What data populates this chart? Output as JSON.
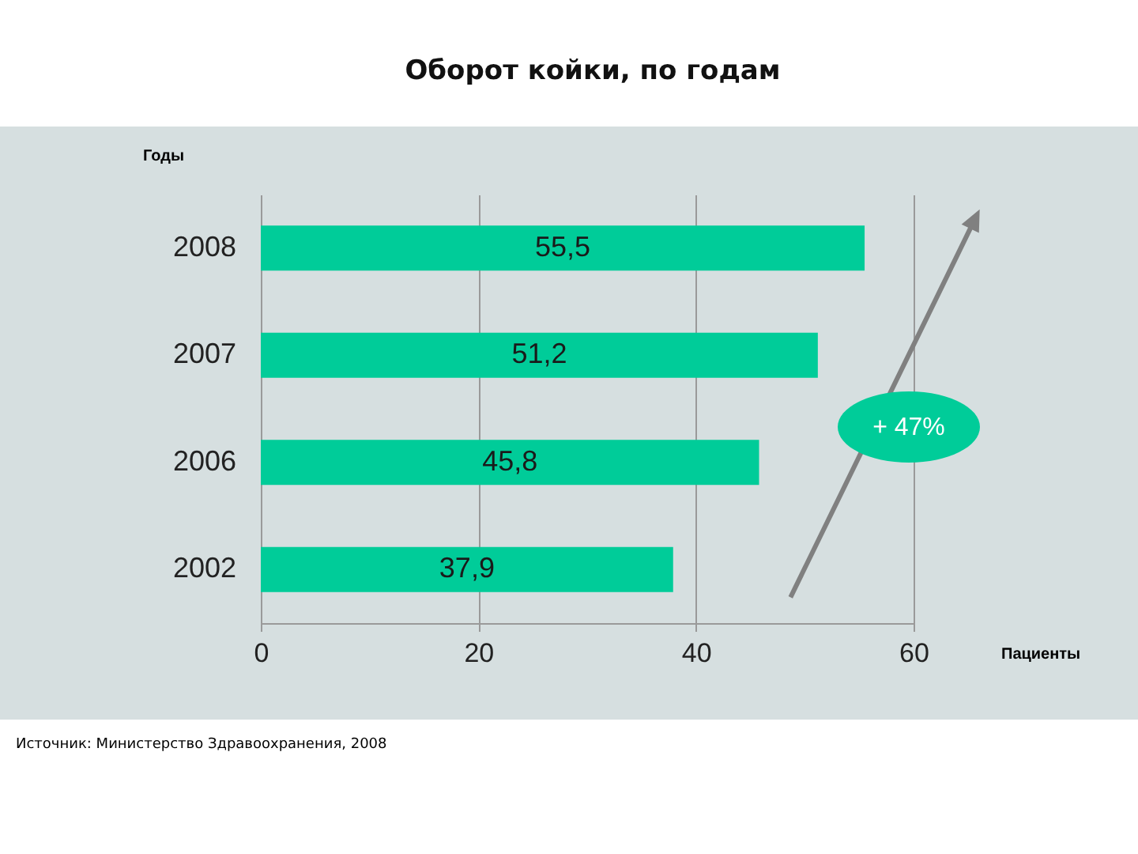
{
  "chart_data": {
    "type": "bar",
    "orientation": "horizontal",
    "title": "Оборот койки, по годам",
    "ylabel": "Годы",
    "xlabel": "Пациенты",
    "categories": [
      "2008",
      "2007",
      "2006",
      "2002"
    ],
    "values": [
      55.5,
      51.2,
      45.8,
      37.9
    ],
    "value_labels": [
      "55,5",
      "51,2",
      "45,8",
      "37,9"
    ],
    "color": "#00cc99",
    "xlim": [
      0,
      60
    ],
    "xticks": [
      0,
      20,
      40,
      60
    ],
    "grid": "x",
    "annotations": [
      "+ 47%",
      "Источник: Министерство Здравоохранения, 2008"
    ]
  }
}
